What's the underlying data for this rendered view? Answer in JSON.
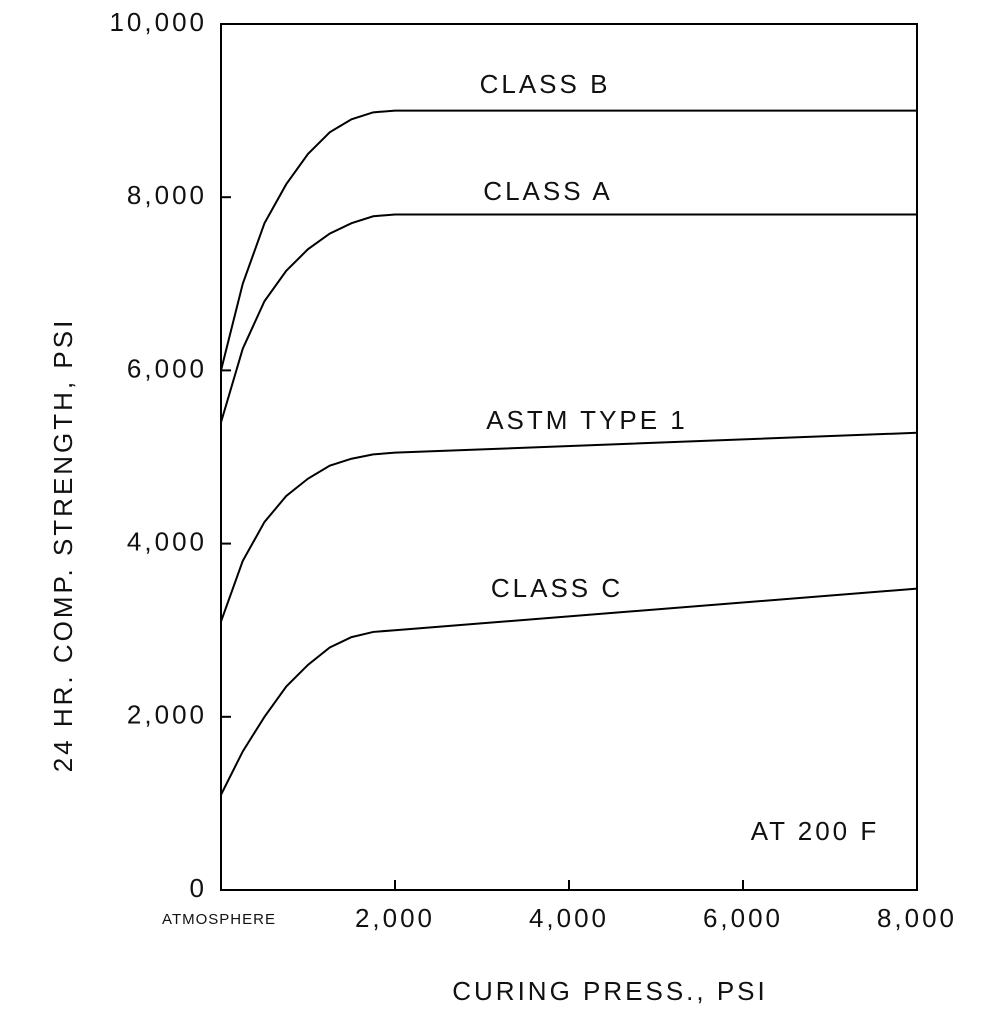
{
  "chart_data": {
    "type": "line",
    "x_label": "CURING PRESS., PSI",
    "y_label": "24 HR. COMP. STRENGTH, PSI",
    "annotation": "AT 200 F",
    "x": [
      0,
      250,
      500,
      750,
      1000,
      1250,
      1500,
      1750,
      2000,
      8000
    ],
    "series": [
      {
        "name": "CLASS B",
        "color": "#000000",
        "values": [
          6000,
          7000,
          7700,
          8150,
          8500,
          8750,
          8900,
          8980,
          9000,
          9000
        ]
      },
      {
        "name": "CLASS A",
        "color": "#000000",
        "values": [
          5400,
          6250,
          6800,
          7150,
          7400,
          7580,
          7700,
          7780,
          7800,
          7800
        ]
      },
      {
        "name": "ASTM TYPE 1",
        "color": "#000000",
        "values": [
          3100,
          3800,
          4250,
          4550,
          4750,
          4900,
          4980,
          5030,
          5050,
          5280
        ]
      },
      {
        "name": "CLASS C",
        "color": "#000000",
        "values": [
          1100,
          1600,
          2000,
          2350,
          2600,
          2800,
          2920,
          2980,
          3000,
          3480
        ]
      }
    ],
    "xlim": [
      0,
      8000
    ],
    "ylim": [
      0,
      10000
    ],
    "xticks": [
      {
        "value": 0,
        "label": "ATMOSPHERE"
      },
      {
        "value": 2000,
        "label": "2,000"
      },
      {
        "value": 4000,
        "label": "4,000"
      },
      {
        "value": 6000,
        "label": "6,000"
      },
      {
        "value": 8000,
        "label": "8,000"
      }
    ],
    "yticks": [
      0,
      {
        "value": 2000,
        "label": "2,000"
      },
      {
        "value": 4000,
        "label": "4,000"
      },
      {
        "value": 6000,
        "label": "6,000"
      },
      {
        "value": 8000,
        "label": "8,000"
      },
      {
        "value": 10000,
        "label": "10,000"
      }
    ]
  }
}
